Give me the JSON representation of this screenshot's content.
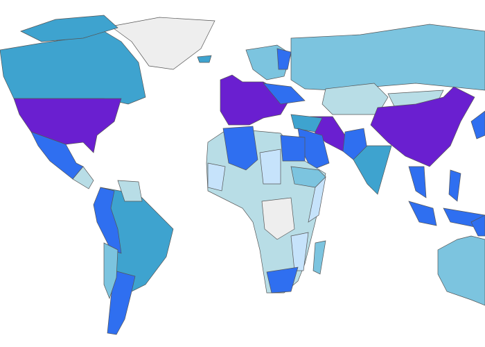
{
  "palette": [
    "#6a1fd0",
    "#2f6ff0",
    "#3ea3cf",
    "#7cc4df",
    "#b8dde6",
    "#c6e3fb",
    "#eeeeee"
  ]
}
